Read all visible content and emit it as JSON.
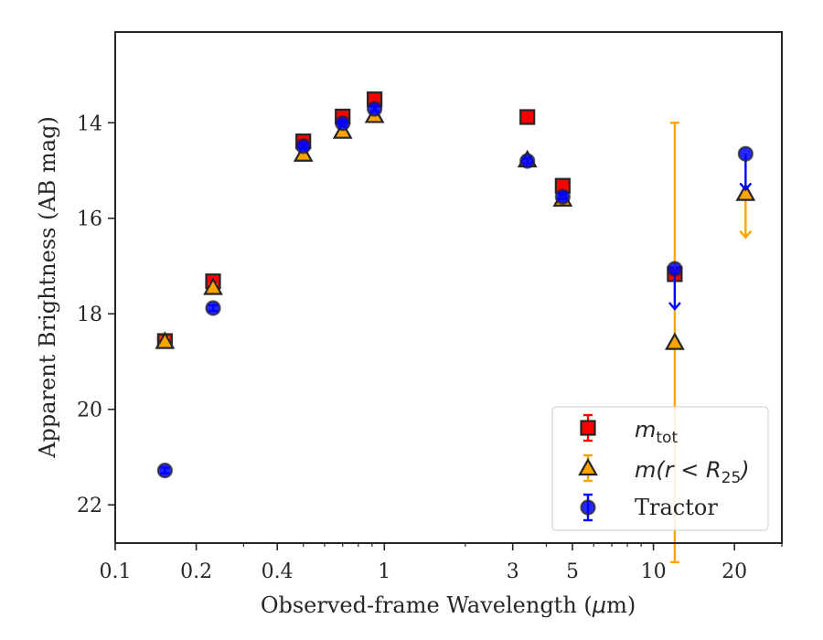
{
  "chart_data": {
    "type": "scatter",
    "title": "",
    "xlabel": "Observed-frame Wavelength (",
    "xlabel_unit": "μ",
    "xlabel_unit_rest": "m)",
    "ylabel": "Apparent Brightness (AB mag)",
    "xscale": "log",
    "xlim": [
      0.1,
      30
    ],
    "ylim": [
      22.8,
      12.1
    ],
    "y_inverted": true,
    "grid": false,
    "legend_position": "lower-right",
    "xticks": [
      {
        "value": 0.1,
        "label": "0.1"
      },
      {
        "value": 0.2,
        "label": "0.2"
      },
      {
        "value": 0.4,
        "label": "0.4"
      },
      {
        "value": 1,
        "label": "1"
      },
      {
        "value": 3,
        "label": "3"
      },
      {
        "value": 5,
        "label": "5"
      },
      {
        "value": 10,
        "label": "10"
      },
      {
        "value": 20,
        "label": "20"
      }
    ],
    "yticks": [
      {
        "value": 14,
        "label": "14"
      },
      {
        "value": 16,
        "label": "16"
      },
      {
        "value": 18,
        "label": "18"
      },
      {
        "value": 20,
        "label": "20"
      },
      {
        "value": 22,
        "label": "22"
      }
    ],
    "colors": {
      "mtot": "#ff0000",
      "mr25": "#ffa500",
      "tractor": "#0000ff",
      "edge": "#262626"
    },
    "series": [
      {
        "key": "mtot",
        "marker": "square",
        "legend_main": "m",
        "legend_sub": "tot",
        "points": [
          {
            "x": 0.153,
            "y": 18.57,
            "err": 0.08
          },
          {
            "x": 0.231,
            "y": 17.32,
            "err": 0.06
          },
          {
            "x": 0.5,
            "y": 14.39,
            "err": 0.05
          },
          {
            "x": 0.7,
            "y": 13.87,
            "err": 0.05
          },
          {
            "x": 0.92,
            "y": 13.51,
            "err": 0.05
          },
          {
            "x": 3.4,
            "y": 13.88,
            "err": 0.05
          },
          {
            "x": 4.6,
            "y": 15.32,
            "err": 0.05
          },
          {
            "x": 12.0,
            "y": 17.17,
            "err": 0.05
          }
        ]
      },
      {
        "key": "mr25",
        "marker": "triangle",
        "legend_main": "m(r < R",
        "legend_sub": "25",
        "legend_tail": ")",
        "points": [
          {
            "x": 0.153,
            "y": 18.58,
            "err": 0.08
          },
          {
            "x": 0.231,
            "y": 17.45,
            "err": 0.06
          },
          {
            "x": 0.5,
            "y": 14.66,
            "err": 0.05
          },
          {
            "x": 0.7,
            "y": 14.18,
            "err": 0.05
          },
          {
            "x": 0.92,
            "y": 13.85,
            "err": 0.05
          },
          {
            "x": 3.4,
            "y": 14.78,
            "err": 0.05
          },
          {
            "x": 4.6,
            "y": 15.6,
            "err": 0.05
          },
          {
            "x": 12.0,
            "y": 18.6,
            "err_low": 4.6,
            "err_high": 4.6
          },
          {
            "x": 22.0,
            "y": 15.48,
            "upper_limit_to": 16.4
          }
        ]
      },
      {
        "key": "tractor",
        "marker": "circle",
        "legend_main": "Tractor",
        "points": [
          {
            "x": 0.153,
            "y": 21.28,
            "err": 0.06
          },
          {
            "x": 0.231,
            "y": 17.88,
            "err": 0.06
          },
          {
            "x": 0.5,
            "y": 14.49,
            "err": 0.05
          },
          {
            "x": 0.7,
            "y": 14.01,
            "err": 0.05
          },
          {
            "x": 0.92,
            "y": 13.71,
            "err": 0.05
          },
          {
            "x": 3.4,
            "y": 14.8,
            "err": 0.05
          },
          {
            "x": 4.6,
            "y": 15.55,
            "err": 0.05
          },
          {
            "x": 12.0,
            "y": 17.06,
            "upper_limit_to": 17.9
          },
          {
            "x": 22.0,
            "y": 14.65,
            "upper_limit_to": 15.4
          }
        ]
      }
    ]
  }
}
